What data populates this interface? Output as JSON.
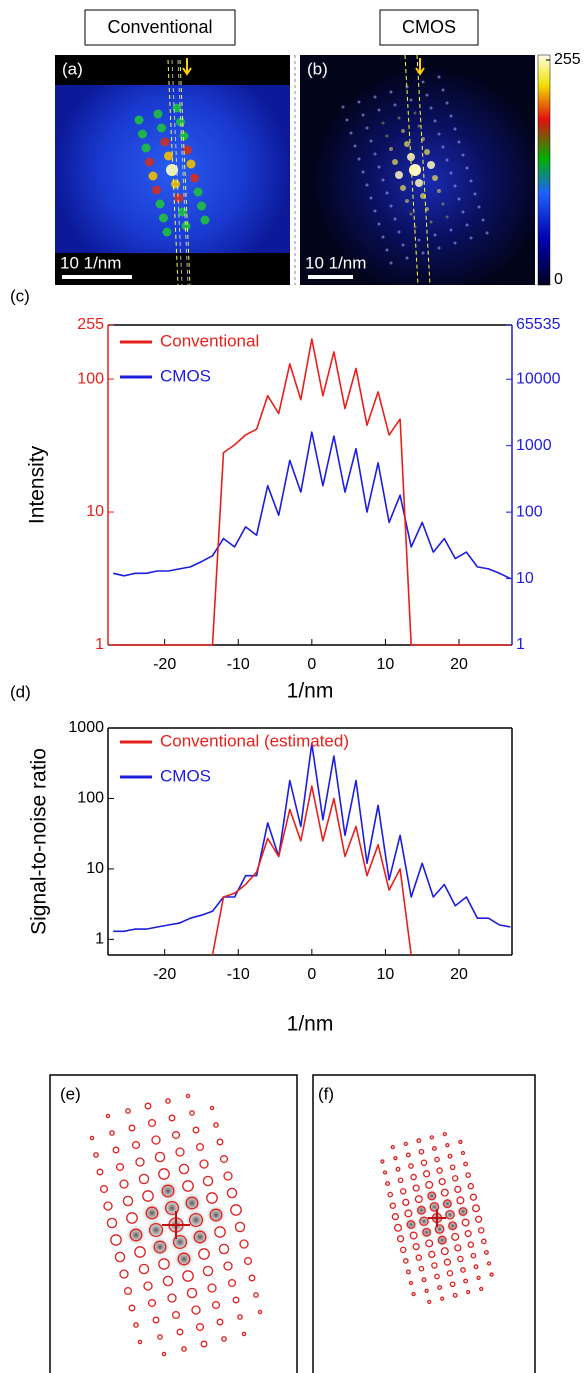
{
  "panels_top": {
    "a": {
      "label": "(a)",
      "title": "Conventional",
      "scale_bar": "10 1/nm"
    },
    "b": {
      "label": "(b)",
      "title": "CMOS",
      "scale_bar": "10 1/nm"
    },
    "colorbar": {
      "range": [
        0,
        255
      ],
      "ticks": [
        0,
        255
      ]
    }
  },
  "chart_data": [
    {
      "type": "line",
      "panel_label": "(c)",
      "xlabel": "1/nm",
      "ylabel": "Intensity",
      "x": [
        -27,
        -25.5,
        -24,
        -22.5,
        -21,
        -19.5,
        -18,
        -16.5,
        -15,
        -13.5,
        -12,
        -10.5,
        -9,
        -7.5,
        -6,
        -4.5,
        -3,
        -1.5,
        0,
        1.5,
        3,
        4.5,
        6,
        7.5,
        9,
        10.5,
        12,
        13.5,
        15,
        16.5,
        18,
        19.5,
        21,
        22.5,
        24,
        25.5,
        27
      ],
      "xlim": [
        -27.7,
        27.2
      ],
      "xticks": [
        -20,
        -10,
        0,
        10,
        20
      ],
      "ylim": [
        1,
        255
      ],
      "yticks": [
        1,
        10,
        100,
        255
      ],
      "y2lim": [
        1,
        65535
      ],
      "y2ticks": [
        1,
        10,
        100,
        1000,
        10000,
        65535
      ],
      "log_y": true,
      "colored_axes": true,
      "legend": "upper left",
      "series": [
        {
          "name": "Conventional",
          "color": "#e8201c",
          "axis": "y",
          "values": [
            1,
            1,
            1,
            1,
            1,
            1,
            1,
            1,
            1,
            1,
            28,
            32,
            38,
            42,
            75,
            55,
            130,
            70,
            200,
            75,
            160,
            60,
            120,
            45,
            80,
            38,
            50,
            1,
            1,
            1,
            1,
            1,
            1,
            1,
            1,
            1,
            1
          ]
        },
        {
          "name": "CMOS",
          "color": "#1d1de0",
          "axis": "y2",
          "values": [
            12,
            11,
            12,
            12,
            13,
            13,
            14,
            15,
            18,
            22,
            40,
            30,
            60,
            45,
            250,
            90,
            600,
            200,
            1600,
            250,
            1400,
            200,
            900,
            100,
            550,
            70,
            180,
            30,
            70,
            25,
            40,
            20,
            25,
            15,
            14,
            12,
            10
          ]
        }
      ]
    },
    {
      "type": "line",
      "panel_label": "(d)",
      "xlabel": "1/nm",
      "ylabel": "Signal-to-noise ratio",
      "x": [
        -27,
        -25.5,
        -24,
        -22.5,
        -21,
        -19.5,
        -18,
        -16.5,
        -15,
        -13.5,
        -12,
        -10.5,
        -9,
        -7.5,
        -6,
        -4.5,
        -3,
        -1.5,
        0,
        1.5,
        3,
        4.5,
        6,
        7.5,
        9,
        10.5,
        12,
        13.5,
        15,
        16.5,
        18,
        19.5,
        21,
        22.5,
        24,
        25.5,
        27
      ],
      "xlim": [
        -27.7,
        27.2
      ],
      "xticks": [
        -20,
        -10,
        0,
        10,
        20
      ],
      "ylim": [
        0.6,
        1000
      ],
      "yticks": [
        1,
        10,
        100,
        1000
      ],
      "log_y": true,
      "colored_axes": false,
      "legend": "upper left",
      "series": [
        {
          "name": "Conventional (estimated)",
          "color": "#e8201c",
          "values": [
            null,
            null,
            null,
            null,
            null,
            null,
            null,
            null,
            null,
            0.6,
            4,
            4.5,
            6,
            9,
            27,
            15,
            70,
            25,
            150,
            25,
            100,
            15,
            40,
            8,
            22,
            5,
            10,
            0.6,
            null,
            null,
            null,
            null,
            null,
            null,
            null,
            null,
            null
          ]
        },
        {
          "name": "CMOS",
          "color": "#1d1de0",
          "values": [
            1.3,
            1.3,
            1.4,
            1.4,
            1.5,
            1.6,
            1.7,
            2,
            2.2,
            2.5,
            4,
            4,
            8,
            8,
            45,
            15,
            180,
            40,
            600,
            50,
            400,
            30,
            180,
            12,
            80,
            7,
            30,
            4,
            12,
            4,
            6,
            3,
            4,
            2,
            2,
            1.6,
            1.5
          ]
        }
      ]
    }
  ],
  "panels_bottom": {
    "e": {
      "label": "(e)"
    },
    "f": {
      "label": "(f)"
    }
  }
}
